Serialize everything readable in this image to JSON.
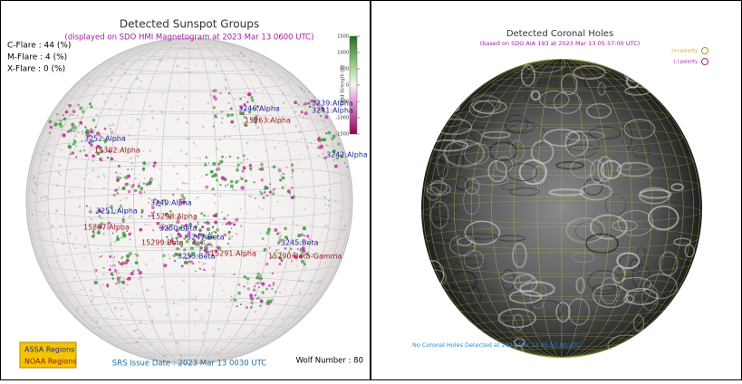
{
  "sunspots": {
    "title": "Detected Sunspot Groups",
    "subtitle": "(displayed on SDO HMI Magnetogram at 2023 Mar 13 0600 UTC)",
    "flares": [
      "C-Flare : 44 (%)",
      "M-Flare : 4 (%)",
      "X-Flare : 0 (%)"
    ],
    "colorbar": {
      "label": "Field Strength (G)",
      "ticks": [
        1500,
        1000,
        500,
        0,
        -500,
        -1000,
        -1500
      ]
    },
    "assa_regions": [
      "3246:Alpha",
      "3239:Alpha",
      "3241:Alpha",
      "3252:Alpha",
      "3242:Alpha",
      "3249:Alpha",
      "3251:Alpha",
      "3250:Beta",
      "3247:Beta",
      "3253:Beta",
      "3245:Beta"
    ],
    "noaa_regions": [
      "15263:Alpha",
      "15302:Alpha",
      "15298:Alpha",
      "15297:Alpha",
      "15299:Beta",
      "15291:Alpha",
      "15290:Beta-Gamma"
    ],
    "legend": [
      "ASSA Regions",
      "NOAA Regions"
    ],
    "issue_date": "SRS Issue Date : 2023 Mar 13 0030 UTC",
    "wolf_number": "Wolf Number : 80"
  },
  "coronal_holes": {
    "title": "Detected Coronal Holes",
    "subtitle": "(based on SDO AIA 193 at 2023 Mar 13 05:57:00 UTC)",
    "legend": [
      "(+) polarity",
      "(-) polarity"
    ],
    "status": "No Coronal Holes Detected at 2023 Mar 13 05:57:00 UTC"
  }
}
